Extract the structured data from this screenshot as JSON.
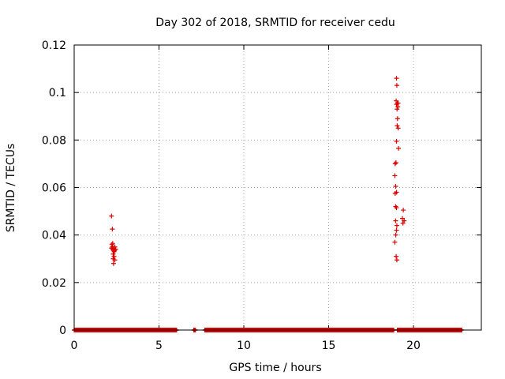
{
  "chart_data": {
    "type": "scatter",
    "title": "Day 302 of 2018, SRMTID for receiver cedu",
    "xlabel": "GPS time / hours",
    "ylabel": "SRMTID / TECUs",
    "xlim": [
      0,
      24
    ],
    "ylim": [
      0,
      0.12
    ],
    "x_ticks": [
      0,
      5,
      10,
      15,
      20
    ],
    "x_tick_labels": [
      "0",
      "5",
      "10",
      "15",
      "20"
    ],
    "y_ticks": [
      0,
      0.02,
      0.04,
      0.06,
      0.08,
      0.1,
      0.12
    ],
    "y_tick_labels": [
      "0",
      "0.02",
      "0.04",
      "0.06",
      "0.08",
      "0.1",
      "0.12"
    ],
    "grid": true,
    "marker": "plus",
    "colors": {
      "series": "#dd0000",
      "grid": "#a0a0a0",
      "axis": "#000000"
    },
    "series": [
      {
        "name": "SRMTID",
        "baseline_segments": [
          [
            0.0,
            6.05
          ],
          [
            7.05,
            7.15
          ],
          [
            7.7,
            18.85
          ],
          [
            19.05,
            22.85
          ]
        ],
        "baseline_step": 0.02,
        "points": [
          [
            2.2,
            0.048
          ],
          [
            2.25,
            0.0425
          ],
          [
            2.22,
            0.036
          ],
          [
            2.25,
            0.035
          ],
          [
            2.3,
            0.0345
          ],
          [
            2.28,
            0.034
          ],
          [
            2.33,
            0.0335
          ],
          [
            2.35,
            0.033
          ],
          [
            2.2,
            0.0345
          ],
          [
            2.4,
            0.035
          ],
          [
            2.3,
            0.032
          ],
          [
            2.35,
            0.031
          ],
          [
            2.3,
            0.03
          ],
          [
            2.4,
            0.0295
          ],
          [
            2.32,
            0.028
          ],
          [
            2.45,
            0.034
          ],
          [
            2.27,
            0.0365
          ],
          [
            2.38,
            0.0335
          ],
          [
            19.0,
            0.106
          ],
          [
            19.02,
            0.103
          ],
          [
            18.98,
            0.0965
          ],
          [
            19.05,
            0.0955
          ],
          [
            19.1,
            0.0955
          ],
          [
            19.0,
            0.095
          ],
          [
            19.08,
            0.094
          ],
          [
            19.03,
            0.093
          ],
          [
            19.06,
            0.089
          ],
          [
            19.04,
            0.086
          ],
          [
            19.1,
            0.085
          ],
          [
            19.0,
            0.0795
          ],
          [
            19.12,
            0.0765
          ],
          [
            18.97,
            0.0705
          ],
          [
            18.92,
            0.07
          ],
          [
            18.9,
            0.065
          ],
          [
            18.95,
            0.0605
          ],
          [
            19.0,
            0.058
          ],
          [
            18.92,
            0.0575
          ],
          [
            18.95,
            0.052
          ],
          [
            19.0,
            0.0515
          ],
          [
            18.95,
            0.046
          ],
          [
            19.02,
            0.044
          ],
          [
            19.0,
            0.042
          ],
          [
            18.96,
            0.04
          ],
          [
            18.9,
            0.037
          ],
          [
            18.98,
            0.031
          ],
          [
            19.02,
            0.0295
          ],
          [
            19.4,
            0.0505
          ],
          [
            19.35,
            0.047
          ],
          [
            19.45,
            0.046
          ],
          [
            19.38,
            0.045
          ]
        ]
      }
    ]
  }
}
